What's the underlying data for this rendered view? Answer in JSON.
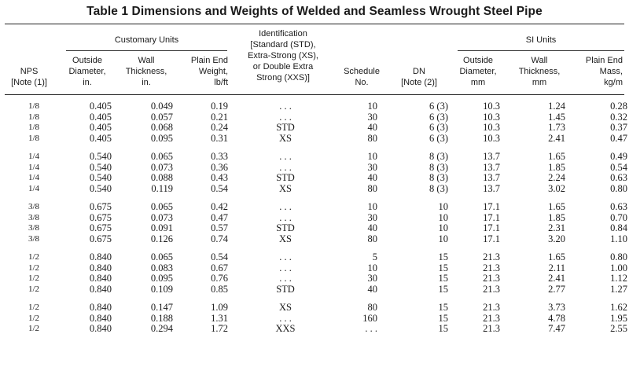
{
  "title": "Table 1   Dimensions and Weights of Welded and Seamless Wrought Steel Pipe",
  "group_headers": {
    "customary": "Customary Units",
    "si": "SI Units"
  },
  "columns": {
    "nps": [
      "NPS",
      "[Note (1)]"
    ],
    "od_in": [
      "Outside",
      "Diameter,",
      "in."
    ],
    "wt_in": [
      "Wall",
      "Thickness,",
      "in."
    ],
    "weight": [
      "Plain End",
      "Weight,",
      "lb/ft"
    ],
    "ident": [
      "Identification",
      "[Standard (STD),",
      "Extra-Strong (XS),",
      "or Double Extra",
      "Strong (XXS)]"
    ],
    "schedule": [
      "Schedule",
      "No."
    ],
    "dn": [
      "DN",
      "[Note (2)]"
    ],
    "od_mm": [
      "Outside",
      "Diameter,",
      "mm"
    ],
    "wt_mm": [
      "Wall",
      "Thickness,",
      "mm"
    ],
    "mass": [
      "Plain End",
      "Mass,",
      "kg/m"
    ]
  },
  "groups": [
    {
      "rows": [
        {
          "nps": "1/8",
          "od_in": "0.405",
          "wt_in": "0.049",
          "weight": "0.19",
          "ident": ". . .",
          "schedule": "10",
          "dn": "6 (3)",
          "od_mm": "10.3",
          "wt_mm": "1.24",
          "mass": "0.28"
        },
        {
          "nps": "1/8",
          "od_in": "0.405",
          "wt_in": "0.057",
          "weight": "0.21",
          "ident": ". . .",
          "schedule": "30",
          "dn": "6 (3)",
          "od_mm": "10.3",
          "wt_mm": "1.45",
          "mass": "0.32"
        },
        {
          "nps": "1/8",
          "od_in": "0.405",
          "wt_in": "0.068",
          "weight": "0.24",
          "ident": "STD",
          "schedule": "40",
          "dn": "6 (3)",
          "od_mm": "10.3",
          "wt_mm": "1.73",
          "mass": "0.37"
        },
        {
          "nps": "1/8",
          "od_in": "0.405",
          "wt_in": "0.095",
          "weight": "0.31",
          "ident": "XS",
          "schedule": "80",
          "dn": "6 (3)",
          "od_mm": "10.3",
          "wt_mm": "2.41",
          "mass": "0.47"
        }
      ]
    },
    {
      "rows": [
        {
          "nps": "1/4",
          "od_in": "0.540",
          "wt_in": "0.065",
          "weight": "0.33",
          "ident": ". . .",
          "schedule": "10",
          "dn": "8 (3)",
          "od_mm": "13.7",
          "wt_mm": "1.65",
          "mass": "0.49"
        },
        {
          "nps": "1/4",
          "od_in": "0.540",
          "wt_in": "0.073",
          "weight": "0.36",
          "ident": ". . .",
          "schedule": "30",
          "dn": "8 (3)",
          "od_mm": "13.7",
          "wt_mm": "1.85",
          "mass": "0.54"
        },
        {
          "nps": "1/4",
          "od_in": "0.540",
          "wt_in": "0.088",
          "weight": "0.43",
          "ident": "STD",
          "schedule": "40",
          "dn": "8 (3)",
          "od_mm": "13.7",
          "wt_mm": "2.24",
          "mass": "0.63"
        },
        {
          "nps": "1/4",
          "od_in": "0.540",
          "wt_in": "0.119",
          "weight": "0.54",
          "ident": "XS",
          "schedule": "80",
          "dn": "8 (3)",
          "od_mm": "13.7",
          "wt_mm": "3.02",
          "mass": "0.80"
        }
      ]
    },
    {
      "rows": [
        {
          "nps": "3/8",
          "od_in": "0.675",
          "wt_in": "0.065",
          "weight": "0.42",
          "ident": ". . .",
          "schedule": "10",
          "dn": "10",
          "od_mm": "17.1",
          "wt_mm": "1.65",
          "mass": "0.63"
        },
        {
          "nps": "3/8",
          "od_in": "0.675",
          "wt_in": "0.073",
          "weight": "0.47",
          "ident": ". . .",
          "schedule": "30",
          "dn": "10",
          "od_mm": "17.1",
          "wt_mm": "1.85",
          "mass": "0.70"
        },
        {
          "nps": "3/8",
          "od_in": "0.675",
          "wt_in": "0.091",
          "weight": "0.57",
          "ident": "STD",
          "schedule": "40",
          "dn": "10",
          "od_mm": "17.1",
          "wt_mm": "2.31",
          "mass": "0.84"
        },
        {
          "nps": "3/8",
          "od_in": "0.675",
          "wt_in": "0.126",
          "weight": "0.74",
          "ident": "XS",
          "schedule": "80",
          "dn": "10",
          "od_mm": "17.1",
          "wt_mm": "3.20",
          "mass": "1.10"
        }
      ]
    },
    {
      "rows": [
        {
          "nps": "1/2",
          "od_in": "0.840",
          "wt_in": "0.065",
          "weight": "0.54",
          "ident": ". . .",
          "schedule": "5",
          "dn": "15",
          "od_mm": "21.3",
          "wt_mm": "1.65",
          "mass": "0.80"
        },
        {
          "nps": "1/2",
          "od_in": "0.840",
          "wt_in": "0.083",
          "weight": "0.67",
          "ident": ". . .",
          "schedule": "10",
          "dn": "15",
          "od_mm": "21.3",
          "wt_mm": "2.11",
          "mass": "1.00"
        },
        {
          "nps": "1/2",
          "od_in": "0.840",
          "wt_in": "0.095",
          "weight": "0.76",
          "ident": ". . .",
          "schedule": "30",
          "dn": "15",
          "od_mm": "21.3",
          "wt_mm": "2.41",
          "mass": "1.12"
        },
        {
          "nps": "1/2",
          "od_in": "0.840",
          "wt_in": "0.109",
          "weight": "0.85",
          "ident": "STD",
          "schedule": "40",
          "dn": "15",
          "od_mm": "21.3",
          "wt_mm": "2.77",
          "mass": "1.27"
        }
      ]
    },
    {
      "rows": [
        {
          "nps": "1/2",
          "od_in": "0.840",
          "wt_in": "0.147",
          "weight": "1.09",
          "ident": "XS",
          "schedule": "80",
          "dn": "15",
          "od_mm": "21.3",
          "wt_mm": "3.73",
          "mass": "1.62"
        },
        {
          "nps": "1/2",
          "od_in": "0.840",
          "wt_in": "0.188",
          "weight": "1.31",
          "ident": ". . .",
          "schedule": "160",
          "dn": "15",
          "od_mm": "21.3",
          "wt_mm": "4.78",
          "mass": "1.95"
        },
        {
          "nps": "1/2",
          "od_in": "0.840",
          "wt_in": "0.294",
          "weight": "1.72",
          "ident": "XXS",
          "schedule": ". . .",
          "dn": "15",
          "od_mm": "21.3",
          "wt_mm": "7.47",
          "mass": "2.55"
        }
      ]
    }
  ]
}
